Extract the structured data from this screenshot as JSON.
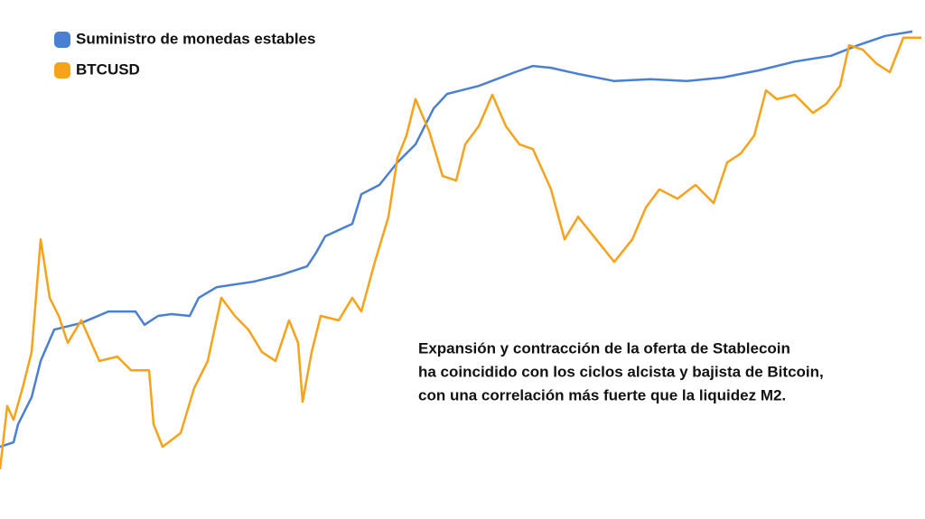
{
  "chart_data": {
    "type": "line",
    "annotation": [
      "Expansión y contracción de la oferta de Stablecoin",
      "ha coincidido con los ciclos alcista y bajista de Bitcoin,",
      "con una correlación más fuerte que la liquidez M2."
    ],
    "xlim": [
      0,
      102
    ],
    "ylim": [
      0,
      100
    ],
    "grid": false,
    "legend": "top-left",
    "series": [
      {
        "name": "Suministro de monedas estables",
        "color": "#4a7fd4",
        "x": [
          0,
          1.5,
          2,
          3.5,
          4.5,
          6,
          9,
          12,
          15,
          16,
          17.5,
          19,
          21,
          22,
          24,
          28,
          31,
          34,
          35,
          36,
          39,
          40,
          42,
          44,
          46,
          48,
          49.5,
          53,
          57,
          59,
          61,
          64,
          68,
          72,
          76,
          80,
          84,
          88,
          92,
          95,
          98,
          101
        ],
        "values": [
          5.1,
          6.1,
          10.2,
          16.3,
          24.5,
          31.6,
          33.1,
          35.7,
          35.7,
          32.7,
          34.7,
          35.1,
          34.7,
          38.8,
          41.2,
          42.4,
          43.9,
          45.9,
          49,
          52.7,
          55.5,
          62.2,
          64.3,
          69.4,
          73.5,
          81.6,
          84.9,
          86.7,
          89.8,
          91.2,
          90.8,
          89.4,
          87.8,
          88.2,
          87.8,
          88.6,
          90.2,
          92.2,
          93.5,
          95.9,
          98,
          99
        ]
      },
      {
        "name": "BTCUSD",
        "color": "#f7a21b",
        "x": [
          0,
          0.8,
          1.5,
          2.5,
          3.5,
          4.5,
          5.5,
          6.5,
          7.5,
          9,
          11,
          13,
          14.5,
          16.5,
          17,
          18,
          20,
          21.5,
          23,
          24.5,
          26,
          27.5,
          29,
          30.5,
          32,
          33,
          33.5,
          34.5,
          35.5,
          37.5,
          39,
          40,
          41.5,
          43,
          44,
          45,
          46,
          47.5,
          49,
          50.5,
          51.5,
          53,
          54.5,
          56,
          57.5,
          59,
          61,
          62.5,
          64,
          66,
          68,
          70,
          71.5,
          73,
          75,
          77,
          79,
          80.5,
          82,
          83.5,
          84.8,
          86,
          88,
          90,
          91.5,
          93,
          94,
          95.5,
          97,
          98.5,
          100,
          102
        ],
        "values": [
          0,
          14.3,
          11.2,
          18.4,
          26.5,
          52,
          38.8,
          34.7,
          28.6,
          33.7,
          24.5,
          25.5,
          22.4,
          22.4,
          10.2,
          5.1,
          8.2,
          18.4,
          24.5,
          38.8,
          34.7,
          31.6,
          26.5,
          24.5,
          33.7,
          28.6,
          15.3,
          26.5,
          34.7,
          33.7,
          38.8,
          35.7,
          46.9,
          57.1,
          70.4,
          75.5,
          83.7,
          76.5,
          66.3,
          65.3,
          73.5,
          77.6,
          84.7,
          77.6,
          73.5,
          72.4,
          63.3,
          52,
          57.1,
          52,
          46.9,
          52,
          59.2,
          63.3,
          61.2,
          64.3,
          60.2,
          69.4,
          71.4,
          75.5,
          85.7,
          83.7,
          84.7,
          80.6,
          82.7,
          86.7,
          95.9,
          94.9,
          91.8,
          89.8,
          97.6,
          97.6
        ]
      }
    ]
  }
}
